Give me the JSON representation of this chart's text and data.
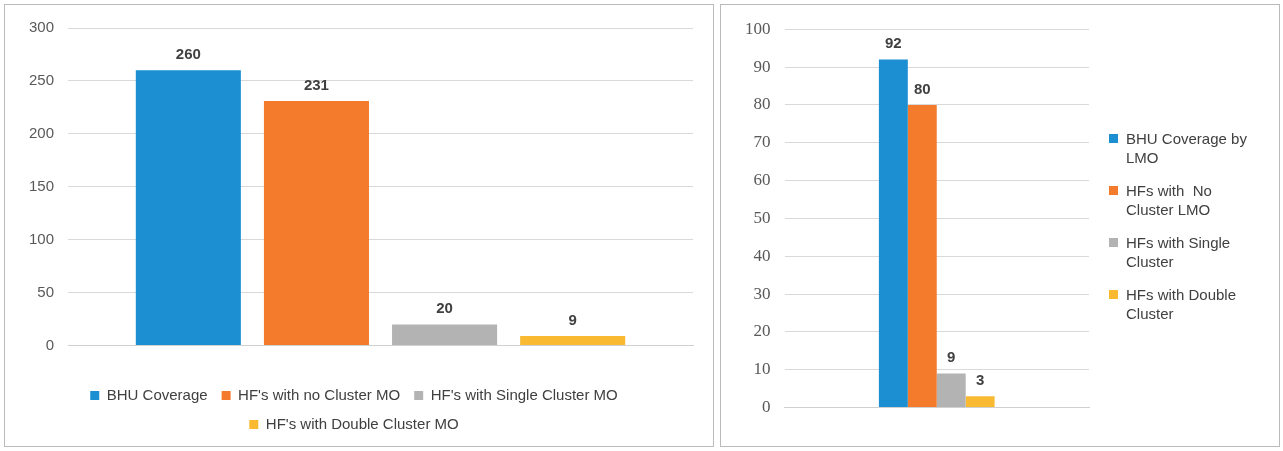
{
  "chart_data": [
    {
      "type": "bar",
      "categories": [
        null
      ],
      "series": [
        {
          "name": "BHU Coverage",
          "color": "#1b8fd2",
          "values": [
            260
          ]
        },
        {
          "name": "HF's with no Cluster MO",
          "color": "#f57b2c",
          "values": [
            231
          ]
        },
        {
          "name": "HF's with Single Cluster MO",
          "color": "#b3b3b3",
          "values": [
            20
          ]
        },
        {
          "name": "HF's with Double Cluster MO",
          "color": "#f9b931",
          "values": [
            9
          ]
        }
      ],
      "ylim": [
        0,
        300
      ],
      "yticks": [
        0,
        50,
        100,
        150,
        200,
        250,
        300
      ],
      "grid": "y",
      "legend": "bottom",
      "data_labels": true
    },
    {
      "type": "bar",
      "categories": [
        null
      ],
      "series": [
        {
          "name": "BHU Coverage by LMO",
          "color": "#1b8fd2",
          "values": [
            92
          ]
        },
        {
          "name": "HFs with  No Cluster LMO",
          "color": "#f57b2c",
          "values": [
            80
          ]
        },
        {
          "name": "HFs with Single Cluster",
          "color": "#b3b3b3",
          "values": [
            9
          ]
        },
        {
          "name": "HFs with Double Cluster",
          "color": "#f9b931",
          "values": [
            3
          ]
        }
      ],
      "ylim": [
        0,
        100
      ],
      "yticks": [
        0,
        10,
        20,
        30,
        40,
        50,
        60,
        70,
        80,
        90,
        100
      ],
      "grid": "y",
      "legend": "right",
      "data_labels": true
    }
  ]
}
